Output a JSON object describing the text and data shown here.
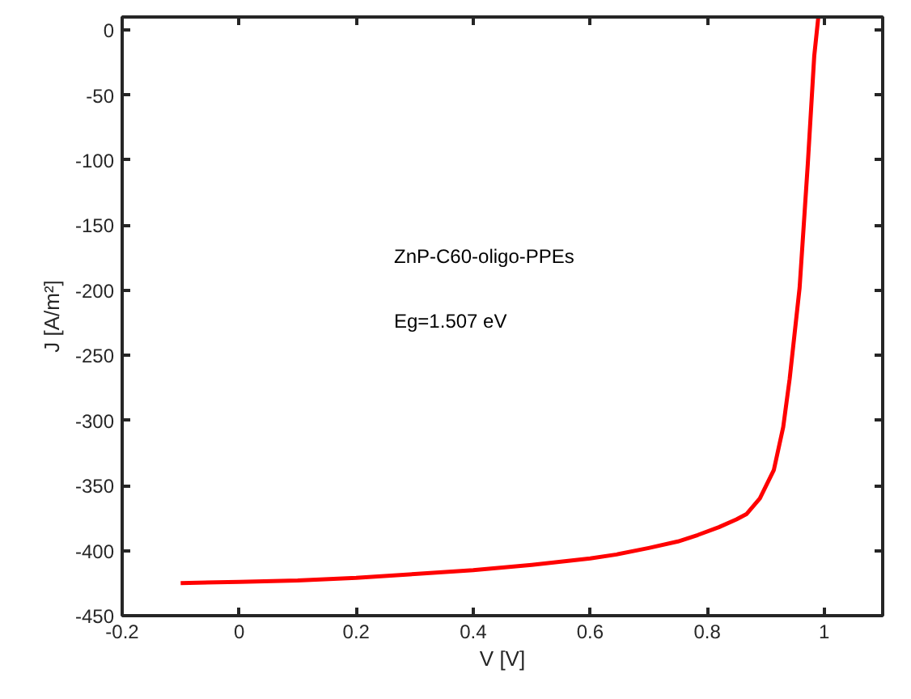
{
  "chart_data": {
    "type": "line",
    "xlabel": "V [V]",
    "ylabel": "J [A/m²]",
    "annotations": [
      "ZnP-C60-oligo-PPEs",
      "Eg=1.507 eV"
    ],
    "x": [
      -0.1,
      0,
      0.1,
      0.2,
      0.3,
      0.4,
      0.5,
      0.6,
      0.645,
      0.7,
      0.75,
      0.784,
      0.82,
      0.85,
      0.867,
      0.89,
      0.914,
      0.93,
      0.941,
      0.958,
      0.972,
      0.983,
      0.99
    ],
    "series": [
      {
        "color": "#ff0000",
        "values": [
          -425,
          -424,
          -423,
          -421,
          -418,
          -415,
          -411,
          -406,
          -403,
          -398,
          -393,
          -388,
          -382,
          -376,
          -372,
          -360,
          -338,
          -305,
          -268,
          -198,
          -103,
          -20,
          10
        ]
      }
    ],
    "xlim": [
      -0.2,
      1.1
    ],
    "ylim": [
      -450,
      10
    ],
    "xticks": [
      -0.2,
      0,
      0.2,
      0.4,
      0.6,
      0.8,
      1
    ],
    "yticks": [
      -450,
      -400,
      -350,
      -300,
      -250,
      -200,
      -150,
      -100,
      -50,
      0
    ],
    "grid": false,
    "marker": "none",
    "line_style": "solid"
  }
}
